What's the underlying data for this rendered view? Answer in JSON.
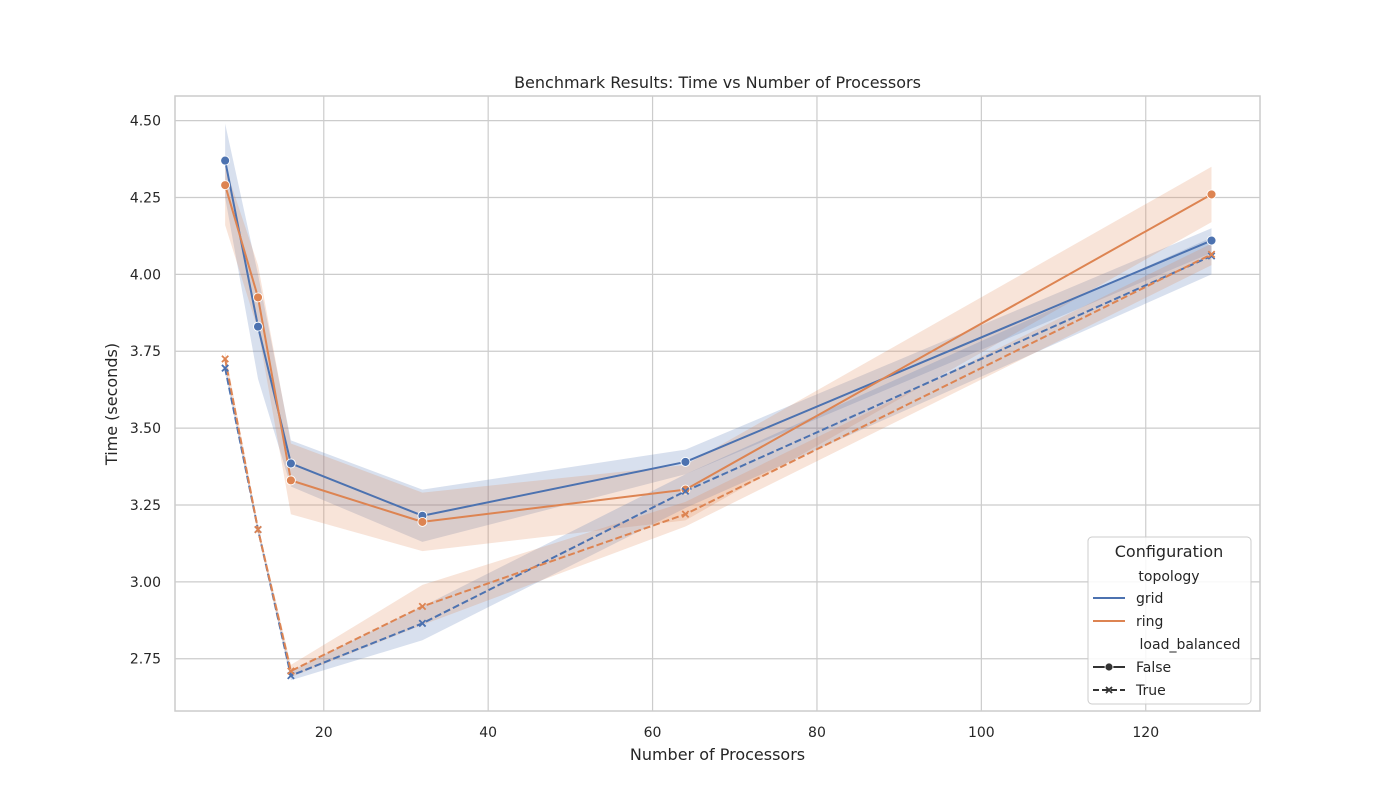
{
  "colors": {
    "grid": "#4c72b0",
    "ring": "#dd8452",
    "gridline": "#cccccc",
    "frame": "#cccccc",
    "text": "#262626"
  },
  "chart_data": {
    "type": "line",
    "title": "Benchmark Results: Time vs Number of Processors",
    "xlabel": "Number of Processors",
    "ylabel": "Time (seconds)",
    "xlim": [
      1.9,
      133.9
    ],
    "ylim": [
      2.58,
      4.58
    ],
    "xticks": [
      20,
      40,
      60,
      80,
      100,
      120
    ],
    "yticks": [
      2.75,
      3.0,
      3.25,
      3.5,
      3.75,
      4.0,
      4.25,
      4.5
    ],
    "ytick_labels": [
      "2.75",
      "3.00",
      "3.25",
      "3.50",
      "3.75",
      "4.00",
      "4.25",
      "4.50"
    ],
    "grid": true,
    "legend_position": "lower-right",
    "legend": {
      "title": "Configuration",
      "hue_title": "topology",
      "hue_items": [
        "grid",
        "ring"
      ],
      "style_title": "load_balanced",
      "style_items": [
        "False",
        "True"
      ]
    },
    "series": [
      {
        "topology": "grid",
        "load_balanced": "False",
        "marker": "circle",
        "dash": "solid",
        "x": [
          8,
          12,
          16,
          32,
          64,
          128
        ],
        "y": [
          4.37,
          3.83,
          3.385,
          3.215,
          3.39,
          4.11
        ],
        "lower": [
          4.25,
          3.66,
          3.31,
          3.13,
          3.35,
          4.07
        ],
        "upper": [
          4.49,
          4.0,
          3.46,
          3.3,
          3.43,
          4.15
        ]
      },
      {
        "topology": "ring",
        "load_balanced": "False",
        "marker": "circle",
        "dash": "solid",
        "x": [
          8,
          12,
          16,
          32,
          64,
          128
        ],
        "y": [
          4.29,
          3.925,
          3.33,
          3.195,
          3.3,
          4.26
        ],
        "lower": [
          4.16,
          3.82,
          3.22,
          3.1,
          3.2,
          4.17
        ],
        "upper": [
          4.35,
          4.03,
          3.45,
          3.29,
          3.38,
          4.35
        ]
      },
      {
        "topology": "grid",
        "load_balanced": "True",
        "marker": "x",
        "dash": "dashed",
        "x": [
          8,
          12,
          16,
          32,
          64,
          128
        ],
        "y": [
          3.695,
          3.17,
          2.695,
          2.865,
          3.295,
          4.06
        ],
        "lower": [
          3.68,
          3.16,
          2.68,
          2.81,
          3.24,
          4.0
        ],
        "upper": [
          3.71,
          3.18,
          2.71,
          2.92,
          3.35,
          4.12
        ]
      },
      {
        "topology": "ring",
        "load_balanced": "True",
        "marker": "x",
        "dash": "dashed",
        "x": [
          8,
          12,
          16,
          32,
          64,
          128
        ],
        "y": [
          3.725,
          3.17,
          2.71,
          2.92,
          3.22,
          4.065
        ],
        "lower": [
          3.7,
          3.155,
          2.69,
          2.86,
          3.18,
          4.03
        ],
        "upper": [
          3.75,
          3.185,
          2.73,
          2.99,
          3.26,
          4.1
        ]
      }
    ]
  }
}
